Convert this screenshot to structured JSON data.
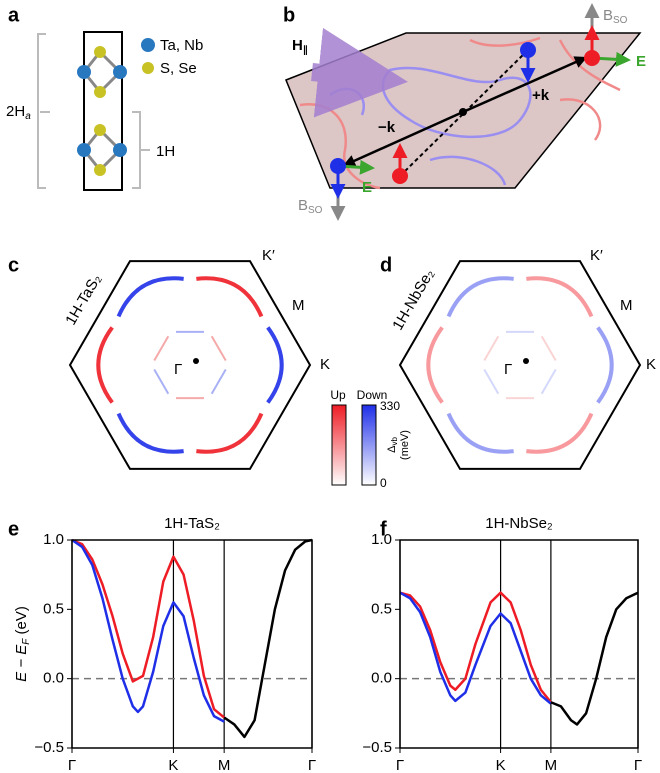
{
  "panel_labels": [
    "a",
    "b",
    "c",
    "d",
    "e",
    "f"
  ],
  "panel_a": {
    "legend": [
      "Ta, Nb",
      "S, Se"
    ],
    "stack_label": [
      "2H",
      "a"
    ],
    "layer_label": "1H"
  },
  "panel_b": {
    "field_label": [
      "H",
      "∥"
    ],
    "k_plus": "+k",
    "k_minus": "−k",
    "e_label": "E",
    "b_label": [
      "B",
      "SO"
    ]
  },
  "panel_c": {
    "title": "1H-TaS₂",
    "points": [
      "K′",
      "M",
      "K",
      "Γ"
    ]
  },
  "panel_d": {
    "title": "1H-NbSe₂",
    "points": [
      "K′",
      "M",
      "K",
      "Γ"
    ]
  },
  "colorbar": {
    "labels": [
      "Up",
      "Down"
    ],
    "quantity": [
      "Δ",
      "vb",
      "(meV)"
    ],
    "ticks": [
      330,
      0
    ]
  },
  "chart_data": [
    {
      "type": "line",
      "title": "1H-TaS₂",
      "ylabel": [
        "E − E",
        "F",
        " (eV)"
      ],
      "xlim": [
        0,
        2.366
      ],
      "xticks": [
        {
          "value": 0,
          "label": "Γ"
        },
        {
          "value": 1,
          "label": "K"
        },
        {
          "value": 1.5,
          "label": "M"
        },
        {
          "value": 2.366,
          "label": "Γ"
        }
      ],
      "ylim": [
        -0.5,
        1.0
      ],
      "yticks": [
        {
          "value": -0.5,
          "label": "−0.5"
        },
        {
          "value": 0,
          "label": "0.0"
        },
        {
          "value": 0.5,
          "label": "0.5"
        },
        {
          "value": 1,
          "label": "1.0"
        }
      ],
      "grid": true,
      "hline": 0,
      "series": [
        {
          "color": "#ee1c25",
          "x": [
            0,
            0.1,
            0.2,
            0.3,
            0.4,
            0.5,
            0.6,
            0.7,
            0.8,
            0.9,
            1.0,
            1.1,
            1.2,
            1.3,
            1.4,
            1.5
          ],
          "values": [
            1.0,
            0.97,
            0.86,
            0.68,
            0.45,
            0.18,
            -0.02,
            0.02,
            0.3,
            0.7,
            0.88,
            0.75,
            0.42,
            0.02,
            -0.22,
            -0.28
          ]
        },
        {
          "color": "#1f2fe8",
          "x": [
            0,
            0.1,
            0.2,
            0.3,
            0.4,
            0.5,
            0.6,
            0.65,
            0.7,
            0.8,
            0.9,
            1.0,
            1.1,
            1.2,
            1.3,
            1.4,
            1.5
          ],
          "values": [
            1.0,
            0.95,
            0.82,
            0.58,
            0.28,
            0.0,
            -0.2,
            -0.24,
            -0.2,
            0.05,
            0.38,
            0.55,
            0.45,
            0.15,
            -0.12,
            -0.27,
            -0.31
          ]
        },
        {
          "color": "#000000",
          "x": [
            1.5,
            1.6,
            1.7,
            1.8,
            1.9,
            2.0,
            2.1,
            2.2,
            2.3,
            2.366
          ],
          "values": [
            -0.28,
            -0.33,
            -0.42,
            -0.3,
            0.1,
            0.5,
            0.78,
            0.93,
            0.99,
            1.0
          ]
        }
      ]
    },
    {
      "type": "line",
      "title": "1H-NbSe₂",
      "xlim": [
        0,
        2.366
      ],
      "xticks": [
        {
          "value": 0,
          "label": "Γ"
        },
        {
          "value": 1,
          "label": "K"
        },
        {
          "value": 1.5,
          "label": "M"
        },
        {
          "value": 2.366,
          "label": "Γ"
        }
      ],
      "ylim": [
        -0.5,
        1.0
      ],
      "yticks": [
        {
          "value": -0.5,
          "label": "−0.5"
        },
        {
          "value": 0,
          "label": "0.0"
        },
        {
          "value": 0.5,
          "label": "0.5"
        },
        {
          "value": 1,
          "label": "1.0"
        }
      ],
      "grid": true,
      "hline": 0,
      "series": [
        {
          "color": "#ee1c25",
          "x": [
            0,
            0.1,
            0.2,
            0.3,
            0.4,
            0.5,
            0.55,
            0.65,
            0.75,
            0.9,
            1.0,
            1.1,
            1.2,
            1.3,
            1.4,
            1.5
          ],
          "values": [
            0.62,
            0.6,
            0.52,
            0.35,
            0.12,
            -0.05,
            -0.08,
            0.0,
            0.25,
            0.55,
            0.62,
            0.55,
            0.35,
            0.1,
            -0.08,
            -0.17
          ]
        },
        {
          "color": "#1f2fe8",
          "x": [
            0,
            0.1,
            0.2,
            0.3,
            0.4,
            0.5,
            0.55,
            0.65,
            0.75,
            0.9,
            1.0,
            1.1,
            1.2,
            1.3,
            1.4,
            1.5
          ],
          "values": [
            0.62,
            0.58,
            0.48,
            0.3,
            0.05,
            -0.12,
            -0.16,
            -0.1,
            0.1,
            0.38,
            0.47,
            0.4,
            0.2,
            0.0,
            -0.12,
            -0.18
          ]
        },
        {
          "color": "#000000",
          "x": [
            1.5,
            1.6,
            1.7,
            1.76,
            1.85,
            1.95,
            2.05,
            2.15,
            2.25,
            2.366
          ],
          "values": [
            -0.17,
            -0.2,
            -0.3,
            -0.33,
            -0.25,
            0.0,
            0.3,
            0.5,
            0.58,
            0.62
          ]
        }
      ]
    }
  ]
}
